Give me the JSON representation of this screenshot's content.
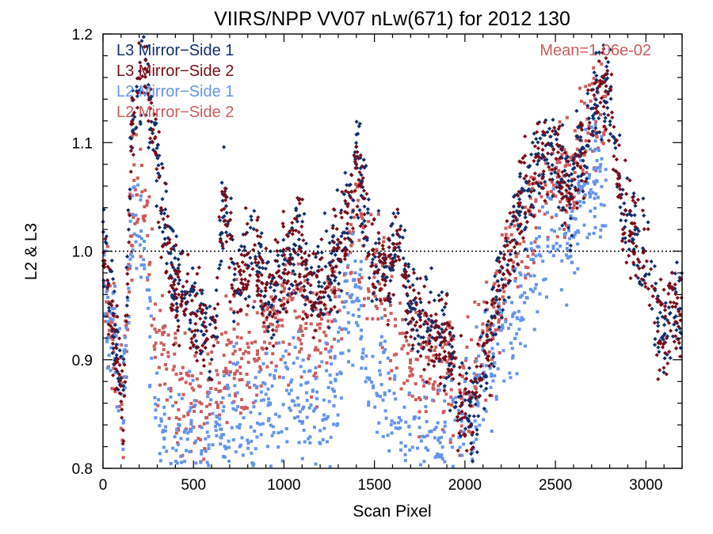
{
  "chart_data": {
    "type": "scatter",
    "title": "VIIRS/NPP VV07 nLw(671) for 2012 130",
    "xlabel": "Scan Pixel",
    "ylabel": "L2 & L3",
    "xlim": [
      0,
      3200
    ],
    "ylim": [
      0.8,
      1.2
    ],
    "x_ticks": [
      0,
      500,
      1000,
      1500,
      2000,
      2500,
      3000
    ],
    "y_ticks": [
      0.8,
      0.9,
      1.0,
      1.1,
      1.2
    ],
    "x_tick_labels": [
      "0",
      "500",
      "1000",
      "1500",
      "2000",
      "2500",
      "3000"
    ],
    "y_tick_labels": [
      "0.8",
      "0.9",
      "1.0",
      "1.1",
      "1.2"
    ],
    "reference_line": 1.0,
    "annotation": "Mean=1.06e-02",
    "annotation_color": "#cd5c5c",
    "series": [
      {
        "name": "L3 Mirror−Side 1",
        "color": "#0f2f6b",
        "trend": [
          [
            0,
            1.02
          ],
          [
            60,
            0.93
          ],
          [
            110,
            0.86
          ],
          [
            160,
            1.12
          ],
          [
            220,
            1.17
          ],
          [
            300,
            1.08
          ],
          [
            380,
            0.98
          ],
          [
            470,
            0.95
          ],
          [
            550,
            0.93
          ],
          [
            610,
            0.91
          ],
          [
            670,
            1.06
          ],
          [
            730,
            0.97
          ],
          [
            820,
            1.01
          ],
          [
            920,
            0.95
          ],
          [
            1000,
            0.99
          ],
          [
            1080,
            1.01
          ],
          [
            1160,
            0.96
          ],
          [
            1250,
            0.98
          ],
          [
            1330,
            1.01
          ],
          [
            1400,
            1.09
          ],
          [
            1470,
            1.01
          ],
          [
            1560,
            0.98
          ],
          [
            1640,
            1.01
          ],
          [
            1700,
            0.95
          ],
          [
            1800,
            0.93
          ],
          [
            1900,
            0.92
          ],
          [
            1950,
            0.88
          ],
          [
            2000,
            0.86
          ],
          [
            2050,
            0.84
          ],
          [
            2100,
            0.9
          ],
          [
            2200,
            0.97
          ],
          [
            2300,
            1.04
          ],
          [
            2400,
            1.08
          ],
          [
            2500,
            1.1
          ],
          [
            2580,
            1.05
          ],
          [
            2660,
            1.1
          ],
          [
            2740,
            1.15
          ],
          [
            2800,
            1.14
          ],
          [
            2880,
            1.03
          ],
          [
            2950,
            1.02
          ],
          [
            3000,
            1.0
          ],
          [
            3080,
            0.92
          ],
          [
            3150,
            0.95
          ],
          [
            3200,
            0.94
          ]
        ]
      },
      {
        "name": "L3 Mirror−Side 2",
        "color": "#7a0c18",
        "trend": [
          [
            0,
            1.01
          ],
          [
            60,
            0.92
          ],
          [
            110,
            0.85
          ],
          [
            160,
            1.11
          ],
          [
            220,
            1.17
          ],
          [
            300,
            1.07
          ],
          [
            380,
            0.97
          ],
          [
            470,
            0.95
          ],
          [
            550,
            0.93
          ],
          [
            610,
            0.91
          ],
          [
            670,
            1.06
          ],
          [
            730,
            0.96
          ],
          [
            820,
            1.0
          ],
          [
            920,
            0.95
          ],
          [
            1000,
            0.99
          ],
          [
            1080,
            1.0
          ],
          [
            1160,
            0.96
          ],
          [
            1250,
            0.98
          ],
          [
            1330,
            1.01
          ],
          [
            1400,
            1.09
          ],
          [
            1470,
            1.01
          ],
          [
            1560,
            0.97
          ],
          [
            1640,
            1.0
          ],
          [
            1700,
            0.94
          ],
          [
            1800,
            0.93
          ],
          [
            1900,
            0.92
          ],
          [
            1950,
            0.88
          ],
          [
            2000,
            0.86
          ],
          [
            2050,
            0.84
          ],
          [
            2100,
            0.9
          ],
          [
            2200,
            0.97
          ],
          [
            2300,
            1.04
          ],
          [
            2400,
            1.08
          ],
          [
            2500,
            1.1
          ],
          [
            2580,
            1.05
          ],
          [
            2660,
            1.1
          ],
          [
            2740,
            1.15
          ],
          [
            2800,
            1.14
          ],
          [
            2880,
            1.03
          ],
          [
            2950,
            1.01
          ],
          [
            3000,
            1.0
          ],
          [
            3080,
            0.92
          ],
          [
            3150,
            0.95
          ],
          [
            3200,
            0.93
          ]
        ]
      },
      {
        "name": "L2 Mirror−Side 1",
        "color": "#6495ed",
        "trend": [
          [
            0,
            0.97
          ],
          [
            60,
            0.92
          ],
          [
            110,
            0.86
          ],
          [
            170,
            1.04
          ],
          [
            230,
            1.0
          ],
          [
            300,
            0.85
          ],
          [
            380,
            0.82
          ],
          [
            470,
            0.82
          ],
          [
            560,
            0.8
          ],
          [
            640,
            0.82
          ],
          [
            720,
            0.86
          ],
          [
            800,
            0.81
          ],
          [
            880,
            0.87
          ],
          [
            960,
            0.86
          ],
          [
            1050,
            0.9
          ],
          [
            1130,
            0.85
          ],
          [
            1200,
            0.84
          ],
          [
            1270,
            0.87
          ],
          [
            1340,
            0.94
          ],
          [
            1400,
            0.96
          ],
          [
            1460,
            0.89
          ],
          [
            1540,
            0.88
          ],
          [
            1620,
            0.84
          ],
          [
            1700,
            0.82
          ],
          [
            1800,
            0.82
          ],
          [
            1900,
            0.83
          ],
          [
            1960,
            0.82
          ],
          [
            2050,
            0.85
          ],
          [
            2150,
            0.9
          ],
          [
            2250,
            0.93
          ],
          [
            2330,
            0.95
          ],
          [
            2400,
            0.99
          ],
          [
            2480,
            1.03
          ],
          [
            2560,
            1.0
          ],
          [
            2640,
            1.04
          ],
          [
            2720,
            1.07
          ],
          [
            2780,
            1.05
          ]
        ]
      },
      {
        "name": "L2 Mirror−Side 2",
        "color": "#cd5c5c",
        "trend": [
          [
            0,
            0.98
          ],
          [
            60,
            0.93
          ],
          [
            110,
            0.86
          ],
          [
            170,
            1.06
          ],
          [
            230,
            1.04
          ],
          [
            300,
            0.92
          ],
          [
            380,
            0.88
          ],
          [
            470,
            0.87
          ],
          [
            560,
            0.85
          ],
          [
            640,
            0.88
          ],
          [
            720,
            0.92
          ],
          [
            800,
            0.89
          ],
          [
            880,
            0.93
          ],
          [
            960,
            0.92
          ],
          [
            1050,
            0.96
          ],
          [
            1130,
            0.93
          ],
          [
            1200,
            0.92
          ],
          [
            1270,
            0.94
          ],
          [
            1340,
            0.98
          ],
          [
            1400,
            1.03
          ],
          [
            1460,
            0.98
          ],
          [
            1540,
            0.96
          ],
          [
            1620,
            0.93
          ],
          [
            1700,
            0.9
          ],
          [
            1800,
            0.89
          ],
          [
            1900,
            0.88
          ],
          [
            1960,
            0.87
          ],
          [
            2050,
            0.88
          ],
          [
            2150,
            0.94
          ],
          [
            2250,
            0.99
          ],
          [
            2330,
            1.02
          ],
          [
            2400,
            1.05
          ],
          [
            2480,
            1.07
          ],
          [
            2560,
            1.06
          ],
          [
            2640,
            1.1
          ],
          [
            2720,
            1.13
          ],
          [
            2780,
            1.11
          ]
        ]
      }
    ]
  }
}
